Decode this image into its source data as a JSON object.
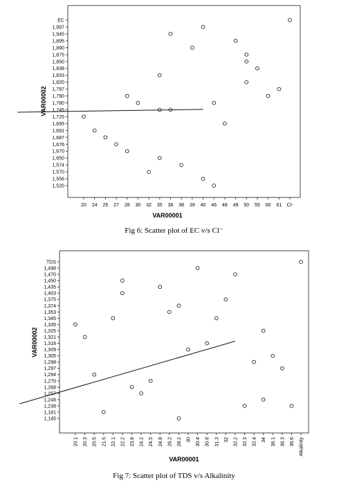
{
  "captions": {
    "fig6": "Fig 6: Scatter plot of EC v/s Cl⁻",
    "fig7": "Fig 7: Scatter plot of TDS v/s Alkalinity"
  },
  "chart_data": [
    {
      "type": "scatter",
      "xlabel": "VAR00001",
      "ylabel": "VAR00002",
      "x_categories": [
        "20",
        "24",
        "25",
        "27",
        "28",
        "30",
        "32",
        "35",
        "36",
        "38",
        "39",
        "40",
        "46",
        "48",
        "49",
        "50",
        "55",
        "60",
        "61",
        "Cl-"
      ],
      "y_categories": [
        "1,520",
        "1,556",
        "1,570",
        "1,574",
        "1,650",
        "1,670",
        "1,676",
        "1,687",
        "1,691",
        "1,695",
        "1,725",
        "1,745",
        "1,780",
        "1,790",
        "1,797",
        "1,820",
        "1,833",
        "1,838",
        "1,850",
        "1,875",
        "1,890",
        "1,895",
        "1,945",
        "1,997",
        "EC"
      ],
      "points": [
        {
          "x": "20",
          "y": "1,725"
        },
        {
          "x": "24",
          "y": "1,691"
        },
        {
          "x": "25",
          "y": "1,687"
        },
        {
          "x": "27",
          "y": "1,676"
        },
        {
          "x": "28",
          "y": "1,670"
        },
        {
          "x": "28",
          "y": "1,790"
        },
        {
          "x": "30",
          "y": "1,780"
        },
        {
          "x": "32",
          "y": "1,570"
        },
        {
          "x": "35",
          "y": "1,650"
        },
        {
          "x": "35",
          "y": "1,745"
        },
        {
          "x": "35",
          "y": "1,833"
        },
        {
          "x": "36",
          "y": "1,945"
        },
        {
          "x": "36",
          "y": "1,745"
        },
        {
          "x": "38",
          "y": "1,574"
        },
        {
          "x": "39",
          "y": "1,890"
        },
        {
          "x": "40",
          "y": "1,997"
        },
        {
          "x": "40",
          "y": "1,556"
        },
        {
          "x": "46",
          "y": "1,780"
        },
        {
          "x": "46",
          "y": "1,520"
        },
        {
          "x": "48",
          "y": "1,695"
        },
        {
          "x": "49",
          "y": "1,895"
        },
        {
          "x": "50",
          "y": "1,875"
        },
        {
          "x": "50",
          "y": "1,850"
        },
        {
          "x": "50",
          "y": "1,820"
        },
        {
          "x": "55",
          "y": "1,838"
        },
        {
          "x": "60",
          "y": "1,790"
        },
        {
          "x": "61",
          "y": "1,797"
        },
        {
          "x": "Cl-",
          "y": "EC"
        }
      ],
      "fit_line": {
        "from": {
          "x": "16",
          "y": "1,738"
        },
        "to": {
          "x": "40",
          "y": "1,747"
        }
      },
      "grid": false
    },
    {
      "type": "scatter",
      "xlabel": "VAR00001",
      "ylabel": "VAR00002",
      "x_categories": [
        "20.1",
        "20.3",
        "20.5",
        "21.5",
        "22.1",
        "22.2",
        "23.8",
        "24.2",
        "24.5",
        "24.8",
        "26.2",
        "28.2",
        "30",
        "30.4",
        "30.8",
        "31.3",
        "32",
        "32.2",
        "32.3",
        "32.4",
        "34",
        "36.1",
        "36.3",
        "36.6",
        "Alkalinity"
      ],
      "y_categories": [
        "1,145",
        "1,181",
        "1,238",
        "1,248",
        "1,257",
        "1,268",
        "1,270",
        "1,294",
        "1,297",
        "1,298",
        "1,305",
        "1,309",
        "1,318",
        "1,321",
        "1,325",
        "1,335",
        "1,345",
        "1,353",
        "1,374",
        "1,375",
        "1,403",
        "1,435",
        "1,450",
        "1,470",
        "1,498",
        "TDS"
      ],
      "points": [
        {
          "x": "20.1",
          "y": "1,335"
        },
        {
          "x": "20.3",
          "y": "1,321"
        },
        {
          "x": "20.5",
          "y": "1,294"
        },
        {
          "x": "21.5",
          "y": "1,181"
        },
        {
          "x": "22.1",
          "y": "1,345"
        },
        {
          "x": "22.2",
          "y": "1,450"
        },
        {
          "x": "22.2",
          "y": "1,403"
        },
        {
          "x": "23.8",
          "y": "1,268"
        },
        {
          "x": "24.2",
          "y": "1,257"
        },
        {
          "x": "24.5",
          "y": "1,270"
        },
        {
          "x": "24.8",
          "y": "1,435"
        },
        {
          "x": "26.2",
          "y": "1,353"
        },
        {
          "x": "28.2",
          "y": "1,374"
        },
        {
          "x": "28.2",
          "y": "1,145"
        },
        {
          "x": "30",
          "y": "1,309"
        },
        {
          "x": "30.4",
          "y": "1,498"
        },
        {
          "x": "30.8",
          "y": "1,318"
        },
        {
          "x": "31.3",
          "y": "1,345"
        },
        {
          "x": "32",
          "y": "1,375"
        },
        {
          "x": "32.2",
          "y": "1,470"
        },
        {
          "x": "32.3",
          "y": "1,238"
        },
        {
          "x": "32.4",
          "y": "1,298"
        },
        {
          "x": "34",
          "y": "1,325"
        },
        {
          "x": "34",
          "y": "1,248"
        },
        {
          "x": "36.1",
          "y": "1,305"
        },
        {
          "x": "36.3",
          "y": "1,297"
        },
        {
          "x": "36.6",
          "y": "1,238"
        },
        {
          "x": "Alkalinity",
          "y": "TDS"
        }
      ],
      "fit_line": {
        "from": {
          "x": "19.5",
          "y": "1,250"
        },
        "to": {
          "x": "32.2",
          "y": "1,319"
        }
      },
      "grid": false
    }
  ]
}
